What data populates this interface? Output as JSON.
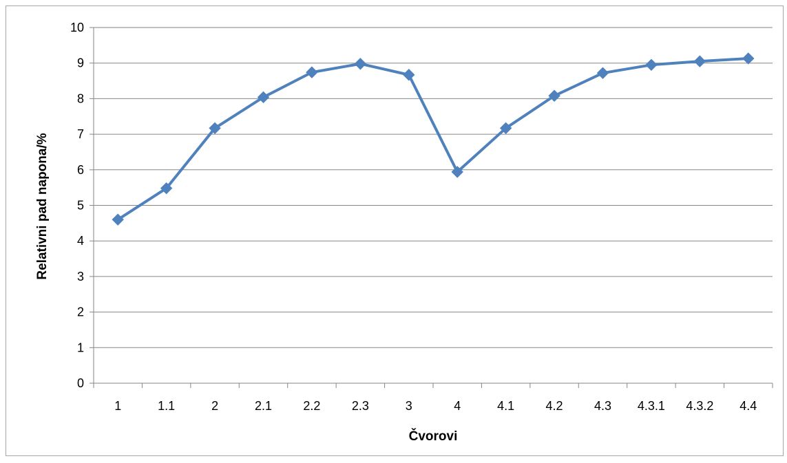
{
  "chart_data": {
    "type": "line",
    "title": "",
    "xlabel": "Čvorovi",
    "ylabel": "Relativni pad napona/%",
    "categories": [
      "1",
      "1.1",
      "2",
      "2.1",
      "2.2",
      "2.3",
      "3",
      "4",
      "4.1",
      "4.2",
      "4.3",
      "4.3.1",
      "4.3.2",
      "4.4"
    ],
    "series": [
      {
        "values": [
          4.6,
          5.48,
          7.17,
          8.04,
          8.74,
          8.98,
          8.67,
          5.94,
          7.17,
          8.08,
          8.72,
          8.95,
          9.05,
          9.13
        ]
      }
    ],
    "ylim": [
      0,
      10
    ],
    "yticks": [
      "0",
      "1",
      "2",
      "3",
      "4",
      "5",
      "6",
      "7",
      "8",
      "9",
      "10"
    ],
    "grid": true,
    "legend": "none",
    "line_color": "#4f81bd",
    "grid_color": "#868686"
  }
}
